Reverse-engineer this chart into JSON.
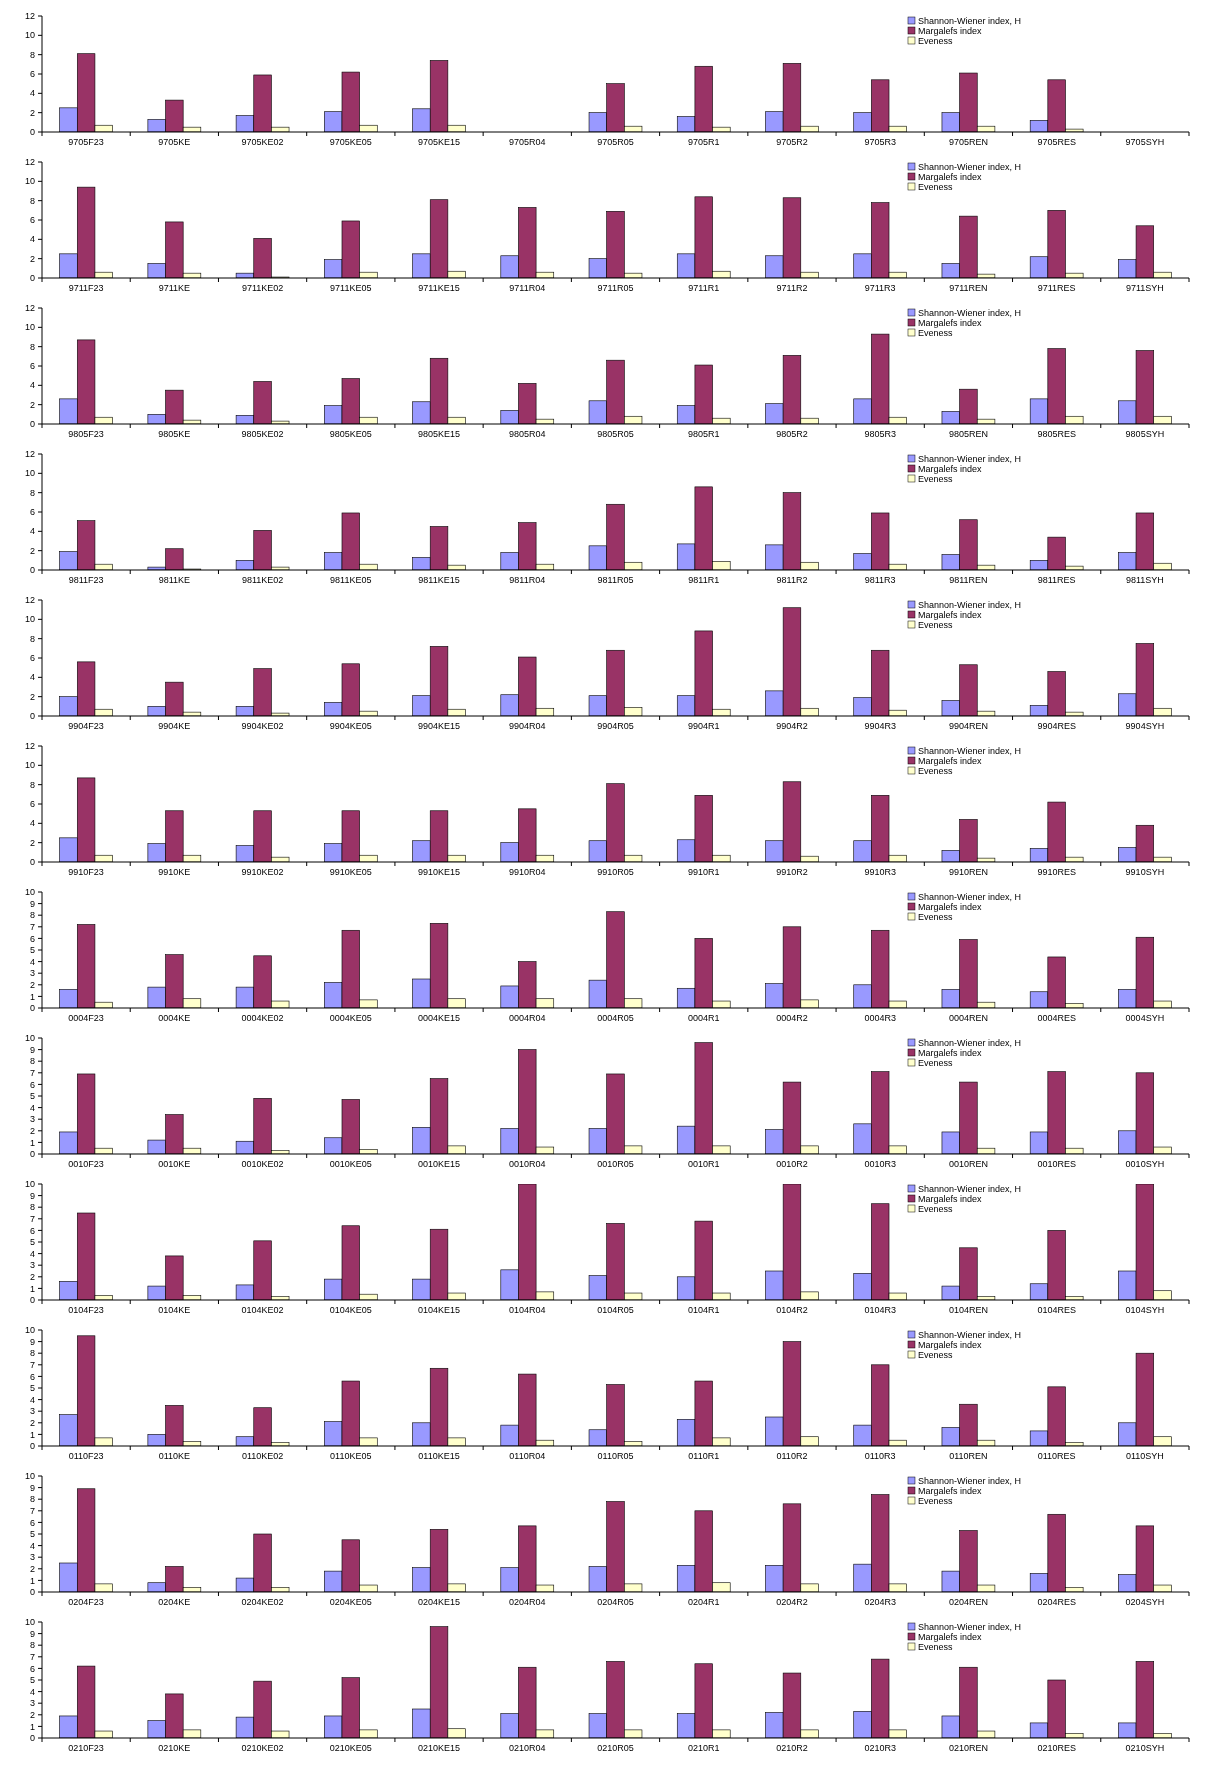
{
  "chart_data": [
    {
      "type": "bar",
      "categories": [
        "9705F23",
        "9705KE",
        "9705KE02",
        "9705KE05",
        "9705KE15",
        "9705R04",
        "9705R05",
        "9705R1",
        "9705R2",
        "9705R3",
        "9705REN",
        "9705RES",
        "9705SYH"
      ],
      "ylim": [
        0,
        12
      ],
      "yticks": [
        0,
        2,
        4,
        6,
        8,
        10,
        12
      ],
      "legend": "top right",
      "series": [
        {
          "name": "Shannon-Wiener index, H",
          "color": "#9999ff",
          "values": [
            2.5,
            1.3,
            1.7,
            2.1,
            2.4,
            null,
            2.0,
            1.6,
            2.1,
            2.0,
            2.0,
            1.2,
            null
          ]
        },
        {
          "name": "Margalefs index",
          "color": "#993366",
          "values": [
            8.1,
            3.3,
            5.9,
            6.2,
            7.4,
            null,
            5.0,
            6.8,
            7.1,
            5.4,
            6.1,
            5.4,
            null
          ]
        },
        {
          "name": "Eveness",
          "color": "#ffffcc",
          "values": [
            0.7,
            0.5,
            0.5,
            0.7,
            0.7,
            null,
            0.6,
            0.5,
            0.6,
            0.6,
            0.6,
            0.3,
            null
          ]
        }
      ]
    },
    {
      "type": "bar",
      "categories": [
        "9711F23",
        "9711KE",
        "9711KE02",
        "9711KE05",
        "9711KE15",
        "9711R04",
        "9711R05",
        "9711R1",
        "9711R2",
        "9711R3",
        "9711REN",
        "9711RES",
        "9711SYH"
      ],
      "ylim": [
        0,
        12
      ],
      "yticks": [
        0,
        2,
        4,
        6,
        8,
        10,
        12
      ],
      "legend": "top right",
      "series": [
        {
          "name": "Shannon-Wiener index, H",
          "color": "#9999ff",
          "values": [
            2.5,
            1.5,
            0.5,
            1.9,
            2.5,
            2.3,
            2.0,
            2.5,
            2.3,
            2.5,
            1.5,
            2.2,
            1.9
          ]
        },
        {
          "name": "Margalefs index",
          "color": "#993366",
          "values": [
            9.4,
            5.8,
            4.1,
            5.9,
            8.1,
            7.3,
            6.9,
            8.4,
            8.3,
            7.8,
            6.4,
            7.0,
            5.4
          ]
        },
        {
          "name": "Eveness",
          "color": "#ffffcc",
          "values": [
            0.6,
            0.5,
            0.1,
            0.6,
            0.7,
            0.6,
            0.5,
            0.7,
            0.6,
            0.6,
            0.4,
            0.5,
            0.6
          ]
        }
      ]
    },
    {
      "type": "bar",
      "categories": [
        "9805F23",
        "9805KE",
        "9805KE02",
        "9805KE05",
        "9805KE15",
        "9805R04",
        "9805R05",
        "9805R1",
        "9805R2",
        "9805R3",
        "9805REN",
        "9805RES",
        "9805SYH"
      ],
      "ylim": [
        0,
        12
      ],
      "yticks": [
        0,
        2,
        4,
        6,
        8,
        10,
        12
      ],
      "legend": "top right",
      "series": [
        {
          "name": "Shannon-Wiener index, H",
          "color": "#9999ff",
          "values": [
            2.6,
            1.0,
            0.9,
            1.9,
            2.3,
            1.4,
            2.4,
            1.9,
            2.1,
            2.6,
            1.3,
            2.6,
            2.4
          ]
        },
        {
          "name": "Margalefs index",
          "color": "#993366",
          "values": [
            8.7,
            3.5,
            4.4,
            4.7,
            6.8,
            4.2,
            6.6,
            6.1,
            7.1,
            9.3,
            3.6,
            7.8,
            7.6
          ]
        },
        {
          "name": "Eveness",
          "color": "#ffffcc",
          "values": [
            0.7,
            0.4,
            0.3,
            0.7,
            0.7,
            0.5,
            0.8,
            0.6,
            0.6,
            0.7,
            0.5,
            0.8,
            0.8
          ]
        }
      ]
    },
    {
      "type": "bar",
      "categories": [
        "9811F23",
        "9811KE",
        "9811KE02",
        "9811KE05",
        "9811KE15",
        "9811R04",
        "9811R05",
        "9811R1",
        "9811R2",
        "9811R3",
        "9811REN",
        "9811RES",
        "9811SYH"
      ],
      "ylim": [
        0,
        12
      ],
      "yticks": [
        0,
        2,
        4,
        6,
        8,
        10,
        12
      ],
      "legend": "top right",
      "series": [
        {
          "name": "Shannon-Wiener index, H",
          "color": "#9999ff",
          "values": [
            1.9,
            0.3,
            1.0,
            1.8,
            1.3,
            1.8,
            2.5,
            2.7,
            2.6,
            1.7,
            1.6,
            1.0,
            1.8
          ]
        },
        {
          "name": "Margalefs index",
          "color": "#993366",
          "values": [
            5.1,
            2.2,
            4.1,
            5.9,
            4.5,
            4.9,
            6.8,
            8.6,
            8.0,
            5.9,
            5.2,
            3.4,
            5.9
          ]
        },
        {
          "name": "Eveness",
          "color": "#ffffcc",
          "values": [
            0.6,
            0.1,
            0.3,
            0.6,
            0.5,
            0.6,
            0.8,
            0.9,
            0.8,
            0.6,
            0.5,
            0.4,
            0.7
          ]
        }
      ]
    },
    {
      "type": "bar",
      "categories": [
        "9904F23",
        "9904KE",
        "9904KE02",
        "9904KE05",
        "9904KE15",
        "9904R04",
        "9904R05",
        "9904R1",
        "9904R2",
        "9904R3",
        "9904REN",
        "9904RES",
        "9904SYH"
      ],
      "ylim": [
        0,
        12
      ],
      "yticks": [
        0,
        2,
        4,
        6,
        8,
        10,
        12
      ],
      "legend": "top right",
      "series": [
        {
          "name": "Shannon-Wiener index, H",
          "color": "#9999ff",
          "values": [
            2.0,
            1.0,
            1.0,
            1.4,
            2.1,
            2.2,
            2.1,
            2.1,
            2.6,
            1.9,
            1.6,
            1.1,
            2.3
          ]
        },
        {
          "name": "Margalefs index",
          "color": "#993366",
          "values": [
            5.6,
            3.5,
            4.9,
            5.4,
            7.2,
            6.1,
            6.8,
            8.8,
            11.2,
            6.8,
            5.3,
            4.6,
            7.5
          ]
        },
        {
          "name": "Eveness",
          "color": "#ffffcc",
          "values": [
            0.7,
            0.4,
            0.3,
            0.5,
            0.7,
            0.8,
            0.9,
            0.7,
            0.8,
            0.6,
            0.5,
            0.4,
            0.8
          ]
        }
      ]
    },
    {
      "type": "bar",
      "categories": [
        "9910F23",
        "9910KE",
        "9910KE02",
        "9910KE05",
        "9910KE15",
        "9910R04",
        "9910R05",
        "9910R1",
        "9910R2",
        "9910R3",
        "9910REN",
        "9910RES",
        "9910SYH"
      ],
      "ylim": [
        0,
        12
      ],
      "yticks": [
        0,
        2,
        4,
        6,
        8,
        10,
        12
      ],
      "legend": "top right",
      "series": [
        {
          "name": "Shannon-Wiener index, H",
          "color": "#9999ff",
          "values": [
            2.5,
            1.9,
            1.7,
            1.9,
            2.2,
            2.0,
            2.2,
            2.3,
            2.2,
            2.2,
            1.2,
            1.4,
            1.5
          ]
        },
        {
          "name": "Margalefs index",
          "color": "#993366",
          "values": [
            8.7,
            5.3,
            5.3,
            5.3,
            5.3,
            5.5,
            8.1,
            6.9,
            8.3,
            6.9,
            4.4,
            6.2,
            3.8
          ]
        },
        {
          "name": "Eveness",
          "color": "#ffffcc",
          "values": [
            0.7,
            0.7,
            0.5,
            0.7,
            0.7,
            0.7,
            0.7,
            0.7,
            0.6,
            0.7,
            0.4,
            0.5,
            0.5
          ]
        }
      ]
    },
    {
      "type": "bar",
      "categories": [
        "0004F23",
        "0004KE",
        "0004KE02",
        "0004KE05",
        "0004KE15",
        "0004R04",
        "0004R05",
        "0004R1",
        "0004R2",
        "0004R3",
        "0004REN",
        "0004RES",
        "0004SYH"
      ],
      "ylim": [
        0,
        10
      ],
      "yticks": [
        0,
        1,
        2,
        3,
        4,
        5,
        6,
        7,
        8,
        9,
        10
      ],
      "legend": "top right",
      "series": [
        {
          "name": "Shannon-Wiener index, H",
          "color": "#9999ff",
          "values": [
            1.6,
            1.8,
            1.8,
            2.2,
            2.5,
            1.9,
            2.4,
            1.7,
            2.1,
            2.0,
            1.6,
            1.4,
            1.6
          ]
        },
        {
          "name": "Margalefs index",
          "color": "#993366",
          "values": [
            7.2,
            4.6,
            4.5,
            6.7,
            7.3,
            4.0,
            8.3,
            6.0,
            7.0,
            6.7,
            5.9,
            4.4,
            6.1
          ]
        },
        {
          "name": "Eveness",
          "color": "#ffffcc",
          "values": [
            0.5,
            0.8,
            0.6,
            0.7,
            0.8,
            0.8,
            0.8,
            0.6,
            0.7,
            0.6,
            0.5,
            0.4,
            0.6
          ]
        }
      ]
    },
    {
      "type": "bar",
      "categories": [
        "0010F23",
        "0010KE",
        "0010KE02",
        "0010KE05",
        "0010KE15",
        "0010R04",
        "0010R05",
        "0010R1",
        "0010R2",
        "0010R3",
        "0010REN",
        "0010RES",
        "0010SYH"
      ],
      "ylim": [
        0,
        10
      ],
      "yticks": [
        0,
        1,
        2,
        3,
        4,
        5,
        6,
        7,
        8,
        9,
        10
      ],
      "legend": "top right",
      "series": [
        {
          "name": "Shannon-Wiener index, H",
          "color": "#9999ff",
          "values": [
            1.9,
            1.2,
            1.1,
            1.4,
            2.3,
            2.2,
            2.2,
            2.4,
            2.1,
            2.6,
            1.9,
            1.9,
            2.0
          ]
        },
        {
          "name": "Margalefs index",
          "color": "#993366",
          "values": [
            6.9,
            3.4,
            4.8,
            4.7,
            6.5,
            9.0,
            6.9,
            9.6,
            6.2,
            7.1,
            6.2,
            7.1,
            7.0
          ]
        },
        {
          "name": "Eveness",
          "color": "#ffffcc",
          "values": [
            0.5,
            0.5,
            0.3,
            0.4,
            0.7,
            0.6,
            0.7,
            0.7,
            0.7,
            0.7,
            0.5,
            0.5,
            0.6
          ]
        }
      ]
    },
    {
      "type": "bar",
      "categories": [
        "0104F23",
        "0104KE",
        "0104KE02",
        "0104KE05",
        "0104KE15",
        "0104R04",
        "0104R05",
        "0104R1",
        "0104R2",
        "0104R3",
        "0104REN",
        "0104RES",
        "0104SYH"
      ],
      "ylim": [
        0,
        10
      ],
      "yticks": [
        0,
        1,
        2,
        3,
        4,
        5,
        6,
        7,
        8,
        9,
        10
      ],
      "legend": "top right",
      "series": [
        {
          "name": "Shannon-Wiener index, H",
          "color": "#9999ff",
          "values": [
            1.6,
            1.2,
            1.3,
            1.8,
            1.8,
            2.6,
            2.1,
            2.0,
            2.5,
            2.3,
            1.2,
            1.4,
            2.5
          ]
        },
        {
          "name": "Margalefs index",
          "color": "#993366",
          "values": [
            7.5,
            3.8,
            5.1,
            6.4,
            6.1,
            10,
            6.6,
            6.8,
            10,
            8.3,
            4.5,
            6.0,
            10
          ]
        },
        {
          "name": "Eveness",
          "color": "#ffffcc",
          "values": [
            0.4,
            0.4,
            0.3,
            0.5,
            0.6,
            0.7,
            0.6,
            0.6,
            0.7,
            0.6,
            0.3,
            0.3,
            0.8
          ]
        }
      ]
    },
    {
      "type": "bar",
      "categories": [
        "0110F23",
        "0110KE",
        "0110KE02",
        "0110KE05",
        "0110KE15",
        "0110R04",
        "0110R05",
        "0110R1",
        "0110R2",
        "0110R3",
        "0110REN",
        "0110RES",
        "0110SYH"
      ],
      "ylim": [
        0,
        10
      ],
      "yticks": [
        0,
        1,
        2,
        3,
        4,
        5,
        6,
        7,
        8,
        9,
        10
      ],
      "legend": "top right",
      "series": [
        {
          "name": "Shannon-Wiener index, H",
          "color": "#9999ff",
          "values": [
            2.7,
            1.0,
            0.8,
            2.1,
            2.0,
            1.8,
            1.4,
            2.3,
            2.5,
            1.8,
            1.6,
            1.3,
            2.0
          ]
        },
        {
          "name": "Margalefs index",
          "color": "#993366",
          "values": [
            9.5,
            3.5,
            3.3,
            5.6,
            6.7,
            6.2,
            5.3,
            5.6,
            9.0,
            7.0,
            3.6,
            5.1,
            8.0
          ]
        },
        {
          "name": "Eveness",
          "color": "#ffffcc",
          "values": [
            0.7,
            0.4,
            0.3,
            0.7,
            0.7,
            0.5,
            0.4,
            0.7,
            0.8,
            0.5,
            0.5,
            0.3,
            0.8
          ]
        }
      ]
    },
    {
      "type": "bar",
      "categories": [
        "0204F23",
        "0204KE",
        "0204KE02",
        "0204KE05",
        "0204KE15",
        "0204R04",
        "0204R05",
        "0204R1",
        "0204R2",
        "0204R3",
        "0204REN",
        "0204RES",
        "0204SYH"
      ],
      "ylim": [
        0,
        10
      ],
      "yticks": [
        0,
        1,
        2,
        3,
        4,
        5,
        6,
        7,
        8,
        9,
        10
      ],
      "legend": "top right",
      "series": [
        {
          "name": "Shannon-Wiener index, H",
          "color": "#9999ff",
          "values": [
            2.5,
            0.8,
            1.2,
            1.8,
            2.1,
            2.1,
            2.2,
            2.3,
            2.3,
            2.4,
            1.8,
            1.6,
            1.5
          ]
        },
        {
          "name": "Margalefs index",
          "color": "#993366",
          "values": [
            8.9,
            2.2,
            5.0,
            4.5,
            5.4,
            5.7,
            7.8,
            7.0,
            7.6,
            8.4,
            5.3,
            6.7,
            5.7
          ]
        },
        {
          "name": "Eveness",
          "color": "#ffffcc",
          "values": [
            0.7,
            0.4,
            0.4,
            0.6,
            0.7,
            0.6,
            0.7,
            0.8,
            0.7,
            0.7,
            0.6,
            0.4,
            0.6
          ]
        }
      ]
    },
    {
      "type": "bar",
      "categories": [
        "0210F23",
        "0210KE",
        "0210KE02",
        "0210KE05",
        "0210KE15",
        "0210R04",
        "0210R05",
        "0210R1",
        "0210R2",
        "0210R3",
        "0210REN",
        "0210RES",
        "0210SYH"
      ],
      "ylim": [
        0,
        10
      ],
      "yticks": [
        0,
        1,
        2,
        3,
        4,
        5,
        6,
        7,
        8,
        9,
        10
      ],
      "legend": "top right",
      "series": [
        {
          "name": "Shannon-Wiener index, H",
          "color": "#9999ff",
          "values": [
            1.9,
            1.5,
            1.8,
            1.9,
            2.5,
            2.1,
            2.1,
            2.1,
            2.2,
            2.3,
            1.9,
            1.3,
            1.3
          ]
        },
        {
          "name": "Margalefs index",
          "color": "#993366",
          "values": [
            6.2,
            3.8,
            4.9,
            5.2,
            9.6,
            6.1,
            6.6,
            6.4,
            5.6,
            6.8,
            6.1,
            5.0,
            6.6
          ]
        },
        {
          "name": "Eveness",
          "color": "#ffffcc",
          "values": [
            0.6,
            0.7,
            0.6,
            0.7,
            0.8,
            0.7,
            0.7,
            0.7,
            0.7,
            0.7,
            0.6,
            0.4,
            0.4
          ]
        }
      ]
    }
  ]
}
